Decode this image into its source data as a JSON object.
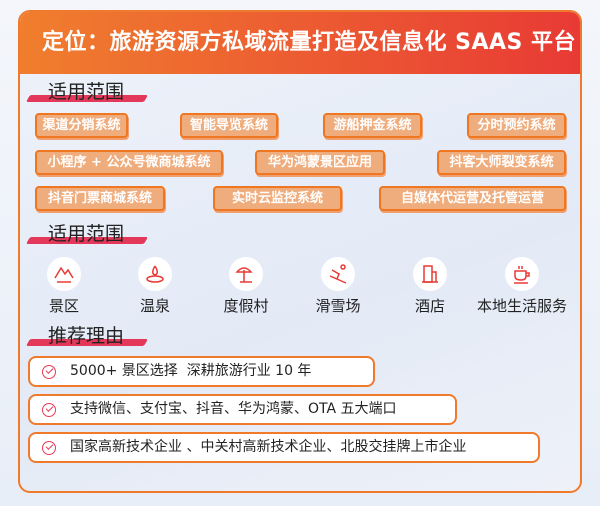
{
  "header": {
    "title": "定位：旅游资源方私域流量打造及信息化 SAAS 平台"
  },
  "sections": {
    "systems_title": "适用范围",
    "scenes_title": "适用范围",
    "reasons_title": "推荐理由"
  },
  "tags": [
    "渠道分销系统",
    "智能导览系统",
    "游船押金系统",
    "分时预约系统",
    "小程序 + 公众号微商城系统",
    "华为鸿蒙景区应用",
    "抖客大师裂变系统",
    "抖音门票商城系统",
    "实时云监控系统",
    "自媒体代运营及托管运营"
  ],
  "scenes": [
    {
      "label": "景区",
      "icon": "mountain-icon"
    },
    {
      "label": "温泉",
      "icon": "hot-spring-icon"
    },
    {
      "label": "度假村",
      "icon": "beach-umbrella-icon"
    },
    {
      "label": "滑雪场",
      "icon": "skier-icon"
    },
    {
      "label": "酒店",
      "icon": "hotel-building-icon"
    },
    {
      "label": "本地生活服务",
      "icon": "coffee-cup-icon"
    }
  ],
  "reasons": [
    "5000+ 景区选择  深耕旅游行业 10 年",
    "支持微信、支付宝、抖音、华为鸿蒙、OTA 五大端口",
    "国家高新技术企业 、中关村高新技术企业、北股交挂牌上市企业"
  ],
  "colors": {
    "accent_orange": "#f07a2c",
    "accent_red": "#e83a35",
    "tag_fill": "#efac7d"
  }
}
